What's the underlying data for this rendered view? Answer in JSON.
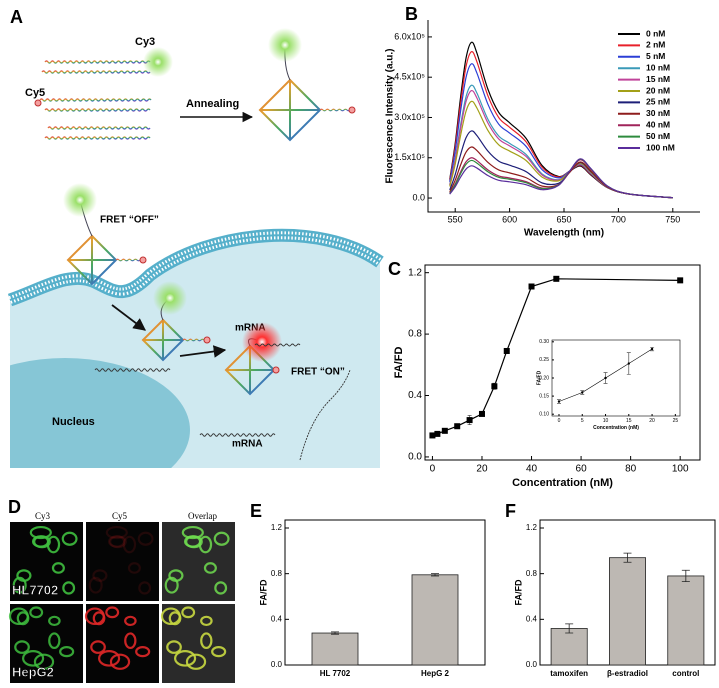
{
  "panel_labels": [
    "A",
    "B",
    "C",
    "D",
    "E",
    "F"
  ],
  "diagram": {
    "cy3": "Cy3",
    "cy5": "Cy5",
    "annealing": "Annealing",
    "fret_off": "FRET “OFF”",
    "fret_on": "FRET “ON”",
    "mrna": [
      "mRNA",
      "mRNA"
    ],
    "nucleus": "Nucleus"
  },
  "microscopy": {
    "columns": [
      "Cy3",
      "Cy5",
      "Overlap"
    ],
    "rows": [
      "HL7702",
      "HepG2"
    ]
  },
  "chart_data": [
    {
      "type": "line",
      "x_label": "Wavelength (nm)",
      "y_label": "Fluorescence Intensity (a.u.)",
      "x": [
        545,
        550,
        555,
        560,
        565,
        570,
        580,
        590,
        600,
        615,
        630,
        645,
        655,
        665,
        675,
        690,
        710,
        750
      ],
      "series": [
        {
          "name": "0 nM",
          "color": "#000000",
          "values": [
            69600,
            203000,
            377000,
            522000,
            580000,
            539400,
            406000,
            319000,
            280200,
            223100,
            120500,
            80500,
            99100,
            119000,
            84900,
            38600,
            14800,
            900
          ]
        },
        {
          "name": "2 nM",
          "color": "#e8202a",
          "values": [
            65400,
            190800,
            354300,
            490500,
            545000,
            506900,
            381500,
            299800,
            263500,
            210000,
            113800,
            78300,
            99900,
            122300,
            87600,
            39400,
            15000,
            1000
          ]
        },
        {
          "name": "5 nM",
          "color": "#2b3fd6",
          "values": [
            60000,
            175000,
            325000,
            450000,
            500000,
            465000,
            350000,
            275000,
            242000,
            193000,
            105000,
            75000,
            100000,
            125000,
            90000,
            40000,
            15000,
            1000
          ]
        },
        {
          "name": "10 nM",
          "color": "#3a9ab8",
          "values": [
            50400,
            147000,
            273000,
            378000,
            420000,
            390600,
            294000,
            231000,
            203700,
            162800,
            89300,
            68300,
            97700,
            126000,
            91400,
            39900,
            14700,
            1100
          ]
        },
        {
          "name": "15 nM",
          "color": "#c0439a",
          "values": [
            48000,
            140000,
            260000,
            360000,
            400000,
            372000,
            280000,
            220000,
            194200,
            155200,
            85400,
            67000,
            98200,
            128000,
            93000,
            40400,
            14800,
            1100
          ]
        },
        {
          "name": "20 nM",
          "color": "#a3a018",
          "values": [
            43200,
            126000,
            234000,
            324000,
            360000,
            334800,
            252000,
            198000,
            175000,
            140200,
            77600,
            64000,
            98000,
            130000,
            94800,
            40800,
            14800,
            1100
          ]
        },
        {
          "name": "25 nM",
          "color": "#1d1f78",
          "values": [
            30000,
            87500,
            162500,
            225000,
            250000,
            232500,
            175000,
            137500,
            122400,
            98600,
            56000,
            55000,
            95500,
            132500,
            97500,
            41000,
            14500,
            1200
          ]
        },
        {
          "name": "30 nM",
          "color": "#8e1c1c",
          "values": [
            22800,
            66500,
            123500,
            171000,
            190000,
            176700,
            133000,
            104500,
            93700,
            76000,
            44300,
            50300,
            94600,
            134500,
            99500,
            41300,
            14400,
            1300
          ]
        },
        {
          "name": "40 nM",
          "color": "#a0245a",
          "values": [
            18000,
            52500,
            97500,
            135000,
            150000,
            139500,
            105000,
            82500,
            74700,
            61100,
            36800,
            48800,
            98300,
            142500,
            105800,
            43500,
            15000,
            1400
          ]
        },
        {
          "name": "50 nM",
          "color": "#2e8b3e",
          "values": [
            16800,
            49000,
            91000,
            126000,
            140000,
            130200,
            98000,
            77000,
            70000,
            57300,
            34900,
            48500,
            99500,
            145000,
            107700,
            44200,
            15200,
            1400
          ]
        },
        {
          "name": "100 nM",
          "color": "#5a2d9c",
          "values": [
            14400,
            42000,
            78000,
            108000,
            120000,
            111600,
            84000,
            66000,
            60400,
            49800,
            31000,
            47000,
            99400,
            146000,
            108600,
            44400,
            15200,
            1400
          ]
        }
      ],
      "xlim": [
        525,
        775
      ],
      "xticks": [
        550,
        600,
        650,
        700,
        750
      ],
      "ylim": [
        -52000,
        663000
      ],
      "yticks": [
        {
          "value": 0,
          "label": "0.0"
        },
        {
          "value": 150000,
          "label": "1.5x10⁵"
        },
        {
          "value": 300000,
          "label": "3.0x10⁵"
        },
        {
          "value": 450000,
          "label": "4.5x10⁵"
        },
        {
          "value": 600000,
          "label": "6.0x10⁵"
        }
      ],
      "legend": "upper right",
      "markers": "none",
      "frame": false
    },
    {
      "type": "line",
      "x_label": "Concentration (nM)",
      "y_label": "FA/FD",
      "x": [
        0,
        2,
        5,
        10,
        15,
        20,
        25,
        30,
        40,
        50,
        100
      ],
      "series": [
        {
          "color": "#000000",
          "values": [
            0.14,
            0.15,
            0.17,
            0.2,
            0.24,
            0.28,
            0.46,
            0.69,
            1.11,
            1.16,
            1.15
          ],
          "errors": [
            0.01,
            0.01,
            0.01,
            0.01,
            0.03,
            0.01,
            0.02,
            0.01,
            0.01,
            0.01,
            0.01
          ]
        }
      ],
      "xlim": [
        -3,
        108
      ],
      "xticks": [
        0,
        20,
        40,
        60,
        80,
        100
      ],
      "ylim": [
        -0.02,
        1.25
      ],
      "yticks": [
        {
          "value": 0,
          "label": "0.0"
        },
        0.4,
        0.8,
        1.2
      ],
      "markers": "square",
      "frame": true
    },
    {
      "type": "line",
      "x_label": "Concentration (nM)",
      "y_label": "FA/FD",
      "x": [
        0,
        5,
        10,
        15,
        20
      ],
      "series": [
        {
          "color": "#000000",
          "values": [
            0.135,
            0.16,
            0.2,
            0.24,
            0.28
          ],
          "errors": [
            0.005,
            0.005,
            0.015,
            0.03,
            0.005
          ]
        }
      ],
      "xlim": [
        -1.5,
        26
      ],
      "xticks": [
        0,
        5,
        10,
        15,
        20,
        25
      ],
      "ylim": [
        0.095,
        0.305
      ],
      "yticks": [
        {
          "value": 0.1,
          "label": "0.10"
        },
        0.15,
        {
          "value": 0.2,
          "label": "0.20"
        },
        0.25,
        {
          "value": 0.3,
          "label": "0.30"
        }
      ],
      "markers": "circle",
      "frame": true
    },
    {
      "type": "bar",
      "y_label": "FA/FD",
      "categories": [
        "HL 7702",
        "HepG 2"
      ],
      "values": [
        0.28,
        0.79
      ],
      "errors": [
        0.01,
        0.01
      ],
      "color": "#bdb8b3",
      "ylim": [
        0,
        1.27
      ],
      "yticks": [
        {
          "value": 0,
          "label": "0.0"
        },
        0.4,
        0.8,
        1.2
      ],
      "frame": true
    },
    {
      "type": "bar",
      "y_label": "FA/FD",
      "categories": [
        "tamoxifen",
        "β-estradiol",
        "control"
      ],
      "values": [
        0.32,
        0.94,
        0.78
      ],
      "errors": [
        0.04,
        0.04,
        0.05
      ],
      "color": "#bdb8b3",
      "ylim": [
        0,
        1.27
      ],
      "yticks": [
        {
          "value": 0,
          "label": "0.0"
        },
        0.4,
        0.8,
        1.2
      ],
      "frame": true
    }
  ]
}
